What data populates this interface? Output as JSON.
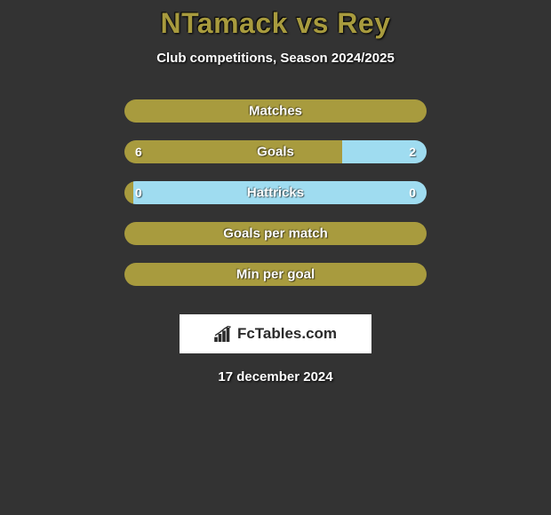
{
  "title": "NTamack vs Rey",
  "subtitle": "Club competitions, Season 2024/2025",
  "date": "17 december 2024",
  "logo_text": "FcTables.com",
  "colors": {
    "background": "#333333",
    "accent": "#a89b3e",
    "secondary": "#9fdcf0",
    "ellipse": "#ffffff",
    "text": "#ffffff",
    "logo_bg": "#ffffff",
    "logo_text": "#2a2a2a"
  },
  "rows": [
    {
      "label": "Matches",
      "left_val": null,
      "right_val": null,
      "left_pct": 100,
      "right_pct": 0,
      "show_ellipses": true
    },
    {
      "label": "Goals",
      "left_val": "6",
      "right_val": "2",
      "left_pct": 72,
      "right_pct": 28,
      "show_ellipses": true
    },
    {
      "label": "Hattricks",
      "left_val": "0",
      "right_val": "0",
      "left_pct": 3,
      "right_pct": 97,
      "show_ellipses": false
    },
    {
      "label": "Goals per match",
      "left_val": null,
      "right_val": null,
      "left_pct": 100,
      "right_pct": 0,
      "show_ellipses": false
    },
    {
      "label": "Min per goal",
      "left_val": null,
      "right_val": null,
      "left_pct": 100,
      "right_pct": 0,
      "show_ellipses": false
    }
  ]
}
